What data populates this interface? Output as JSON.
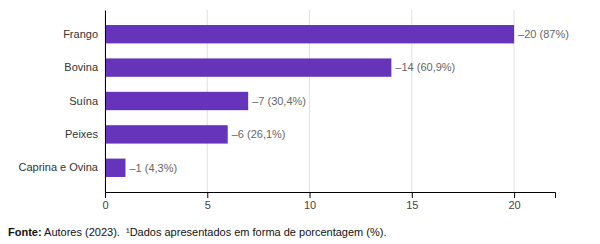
{
  "chart_data": {
    "type": "bar",
    "orientation": "horizontal",
    "categories": [
      "Caprina e Ovina",
      "Peixes",
      "Suína",
      "Bovina",
      "Frango"
    ],
    "values": [
      1,
      6,
      7,
      14,
      20
    ],
    "data_labels": true,
    "value_labels": [
      "–1 (4,3%)",
      "–6 (26,1%)",
      "–7 (30,4%)",
      "–14 (60,9%)",
      "–20 (87%)"
    ],
    "color": "#6633bb",
    "xlim": [
      0,
      22
    ],
    "xticks": [
      0,
      5,
      10,
      15,
      20
    ],
    "grid": true,
    "annotations": [
      "Fonte:",
      " Autores (2023).  ¹Dados apresentados em forma de porcentagem (%)."
    ]
  }
}
